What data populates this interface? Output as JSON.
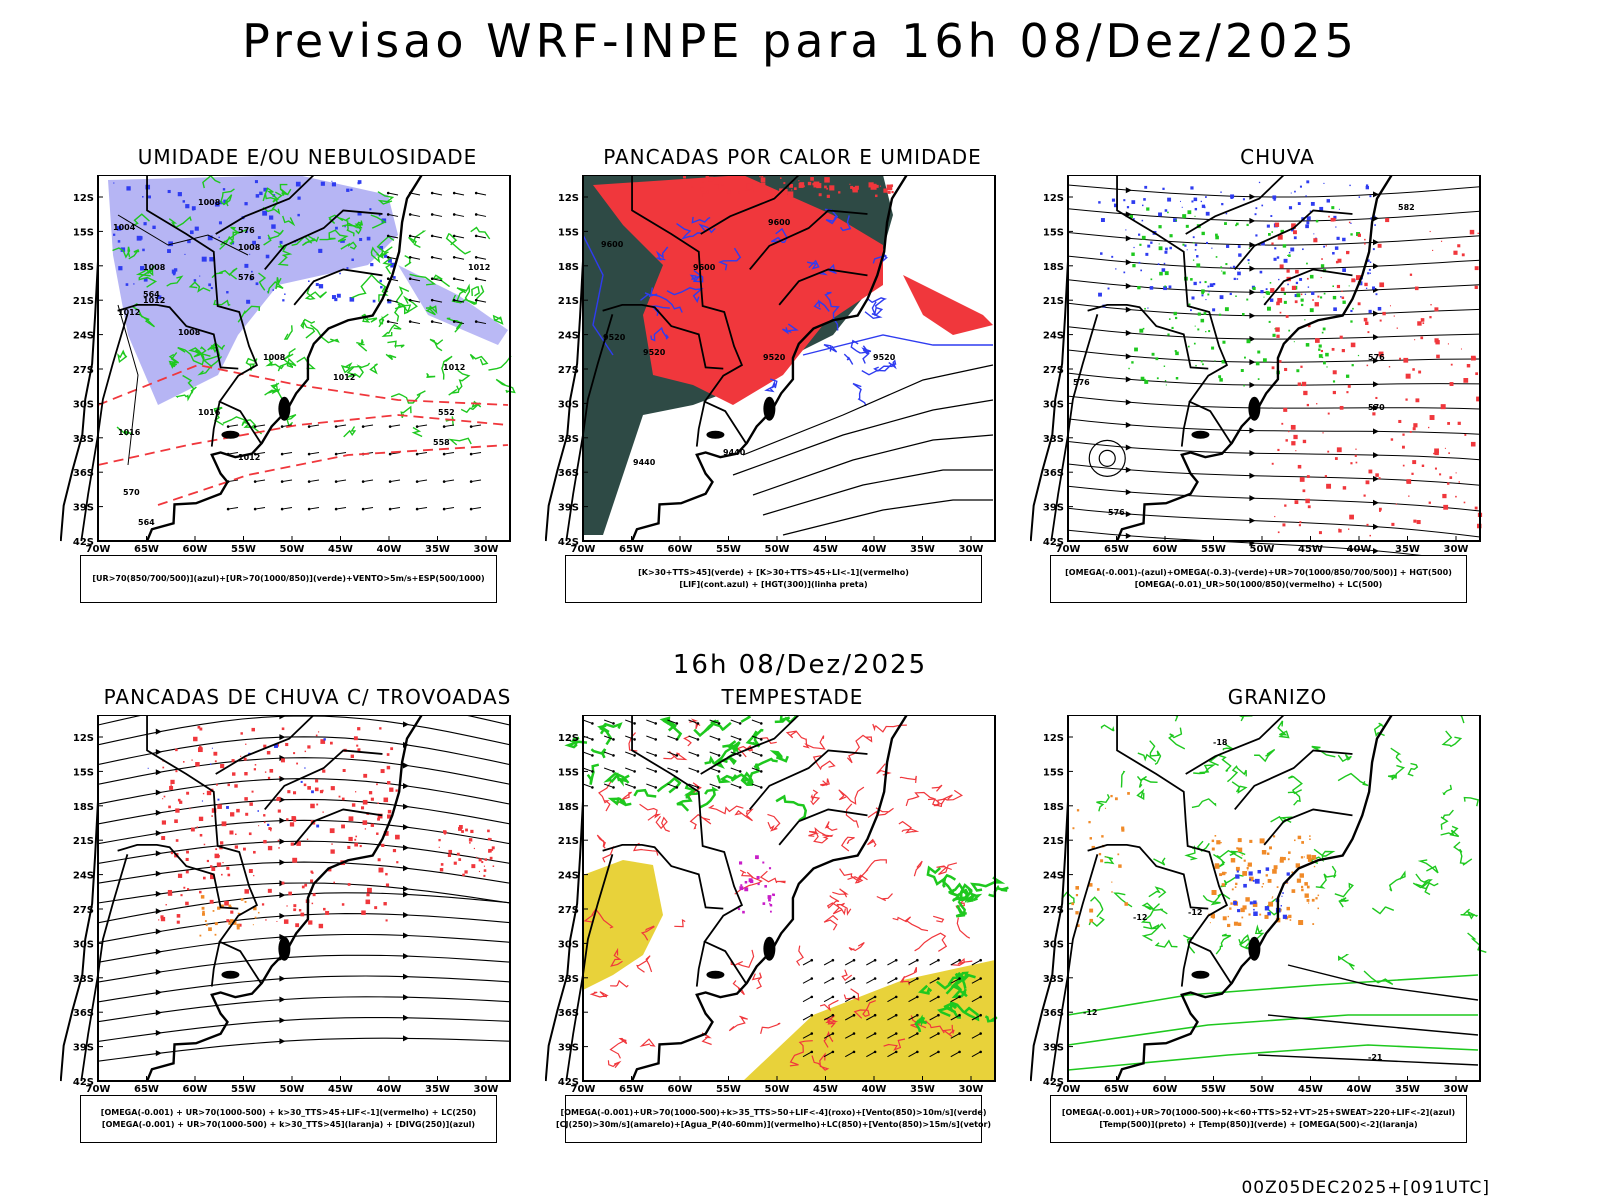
{
  "header": {
    "title": "Previsao WRF-INPE  para 16h 08/Dez/2025",
    "subtitle": "16h 08/Dez/2025",
    "run_info": "00Z05DEC2025+[091UTC]"
  },
  "axes": {
    "lat_labels": [
      "12S",
      "15S",
      "18S",
      "21S",
      "24S",
      "27S",
      "30S",
      "33S",
      "36S",
      "39S",
      "42S"
    ],
    "lon_labels": [
      "70W",
      "65W",
      "60W",
      "55W",
      "50W",
      "45W",
      "40W",
      "35W",
      "30W"
    ]
  },
  "colors": {
    "blue": "#2f3cf0",
    "lavender": "#a9a8f2",
    "green": "#1ec81e",
    "red": "#f0373c",
    "darkteal": "#2e4a45",
    "orange": "#f08a28",
    "yellow": "#e8d23a",
    "magenta": "#c81ec8",
    "black": "#000000"
  },
  "panels": [
    {
      "title": "UMIDADE E/OU NEBULOSIDADE",
      "legend": [
        "[UR>70(850/700/500)](azul)+[UR>70(1000/850)](verde)+VENTO>5m/s+ESP(500/1000)"
      ],
      "labels": [
        "1008",
        "1004",
        "1008",
        "1008",
        "1012",
        "1012",
        "1008",
        "1008",
        "1012",
        "1016",
        "1016",
        "1012",
        "1012",
        "1012",
        "564",
        "576",
        "564",
        "570",
        "552",
        "558",
        "576"
      ]
    },
    {
      "title": "PANCADAS POR CALOR E UMIDADE",
      "legend": [
        "[K>30+TTS>45](verde) + [K>30+TTS>45+LI<-1](vermelho)",
        "[LIF](cont.azul) + [HGT(300)](linha preta)"
      ],
      "labels": [
        "9600",
        "9600",
        "9600",
        "9520",
        "9520",
        "9520",
        "9520",
        "9440",
        "9440"
      ]
    },
    {
      "title": "CHUVA",
      "legend": [
        "[OMEGA(-0.001)-(azul)+OMEGA(-0.3)-(verde)+UR>70(1000/850/700/500)] + HGT(500)",
        "[OMEGA(-0.01)_UR>50(1000/850)(vermelho) + LC(500)"
      ],
      "labels": [
        "582",
        "576",
        "576",
        "576",
        "570"
      ]
    },
    {
      "title": "PANCADAS DE CHUVA C/ TROVOADAS",
      "legend": [
        "[OMEGA(-0.001) + UR>70(1000-500) + k>30_TTS>45+LIF<-1](vermelho) + LC(250)",
        "[OMEGA(-0.001) + UR>70(1000-500) + k>30_TTS>45](laranja) + [DIVG(250)](azul)"
      ],
      "labels": []
    },
    {
      "title": "TEMPESTADE",
      "legend": [
        "[OMEGA(-0.001)+UR>70(1000-500)+k>35_TTS>50+LIF<-4](roxo)+[Vento(850)>10m/s](verde)",
        "[CJ(250)>30m/s](amarelo)+[Agua_P(40-60mm)](vermelho)+LC(850)+[Vento(850)>15m/s](vetor)"
      ],
      "labels": []
    },
    {
      "title": "GRANIZO",
      "legend": [
        "[OMEGA(-0.001)+UR>70(1000-500)+k<60+TTS>52+VT>25+SWEAT>220+LIF<-2](azul)",
        "[Temp(500)](preto) + [Temp(850)](verde) + [OMEGA(500)<-2](laranja)"
      ],
      "labels": [
        "-12",
        "-12",
        "-21",
        "-18",
        "-12"
      ]
    }
  ]
}
